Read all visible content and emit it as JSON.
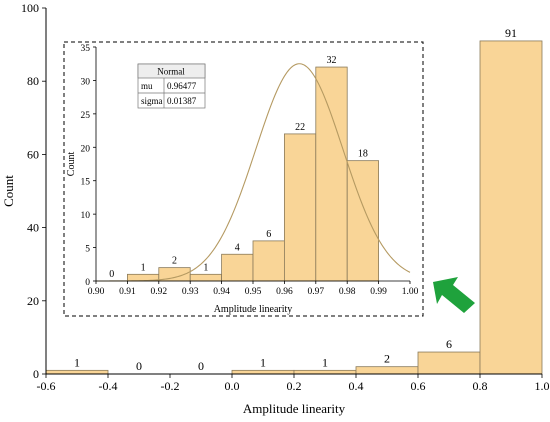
{
  "chart_data": [
    {
      "type": "bar",
      "xlabel": "Amplitude linearity",
      "ylabel": "Count",
      "xlim": [
        -0.6,
        1.0
      ],
      "ylim": [
        0,
        100
      ],
      "xticks": [
        "-0.6",
        "-0.4",
        "-0.2",
        "0.0",
        "0.2",
        "0.4",
        "0.6",
        "0.8",
        "1.0"
      ],
      "yticks": [
        "0",
        "20",
        "40",
        "60",
        "80",
        "100"
      ],
      "bins": [
        {
          "x0": -0.6,
          "x1": -0.4,
          "value": 1,
          "label": "1"
        },
        {
          "x0": -0.4,
          "x1": -0.2,
          "value": 0,
          "label": "0"
        },
        {
          "x0": -0.2,
          "x1": 0.0,
          "value": 0,
          "label": "0"
        },
        {
          "x0": 0.0,
          "x1": 0.2,
          "value": 1,
          "label": "1"
        },
        {
          "x0": 0.2,
          "x1": 0.4,
          "value": 1,
          "label": "1"
        },
        {
          "x0": 0.4,
          "x1": 0.6,
          "value": 2,
          "label": "2"
        },
        {
          "x0": 0.6,
          "x1": 0.8,
          "value": 6,
          "label": "6"
        },
        {
          "x0": 0.8,
          "x1": 1.0,
          "value": 91,
          "label": "91"
        }
      ],
      "bar_color": "#f9d597",
      "grid": false
    },
    {
      "type": "bar",
      "inset": true,
      "xlabel": "Amplitude linearity",
      "ylabel": "Count",
      "xlim": [
        0.9,
        1.0
      ],
      "ylim": [
        0,
        35
      ],
      "xticks": [
        "0.90",
        "0.91",
        "0.92",
        "0.93",
        "0.94",
        "0.95",
        "0.96",
        "0.97",
        "0.98",
        "0.99",
        "1.00"
      ],
      "yticks": [
        "0",
        "5",
        "10",
        "15",
        "20",
        "25",
        "30",
        "35"
      ],
      "bins": [
        {
          "x0": 0.9,
          "x1": 0.91,
          "value": 0,
          "label": "0"
        },
        {
          "x0": 0.91,
          "x1": 0.92,
          "value": 1,
          "label": "1"
        },
        {
          "x0": 0.92,
          "x1": 0.93,
          "value": 2,
          "label": "2"
        },
        {
          "x0": 0.93,
          "x1": 0.94,
          "value": 1,
          "label": "1"
        },
        {
          "x0": 0.94,
          "x1": 0.95,
          "value": 4,
          "label": "4"
        },
        {
          "x0": 0.95,
          "x1": 0.96,
          "value": 6,
          "label": "6"
        },
        {
          "x0": 0.96,
          "x1": 0.97,
          "value": 22,
          "label": "22"
        },
        {
          "x0": 0.97,
          "x1": 0.98,
          "value": 32,
          "label": "32"
        },
        {
          "x0": 0.98,
          "x1": 0.99,
          "value": 18,
          "label": "18"
        }
      ],
      "fit": {
        "distribution": "Normal",
        "mu": 0.96477,
        "sigma": 0.01387,
        "peak": 32.5,
        "color": "#b59a62"
      },
      "stats_table": {
        "header": "Normal",
        "rows": [
          {
            "name": "mu",
            "value": "0.96477"
          },
          {
            "name": "sigma",
            "value": "0.01387"
          }
        ]
      },
      "bar_color": "#f9d597"
    }
  ],
  "arrow": {
    "color": "#1fa23c",
    "name": "arrow-icon"
  }
}
